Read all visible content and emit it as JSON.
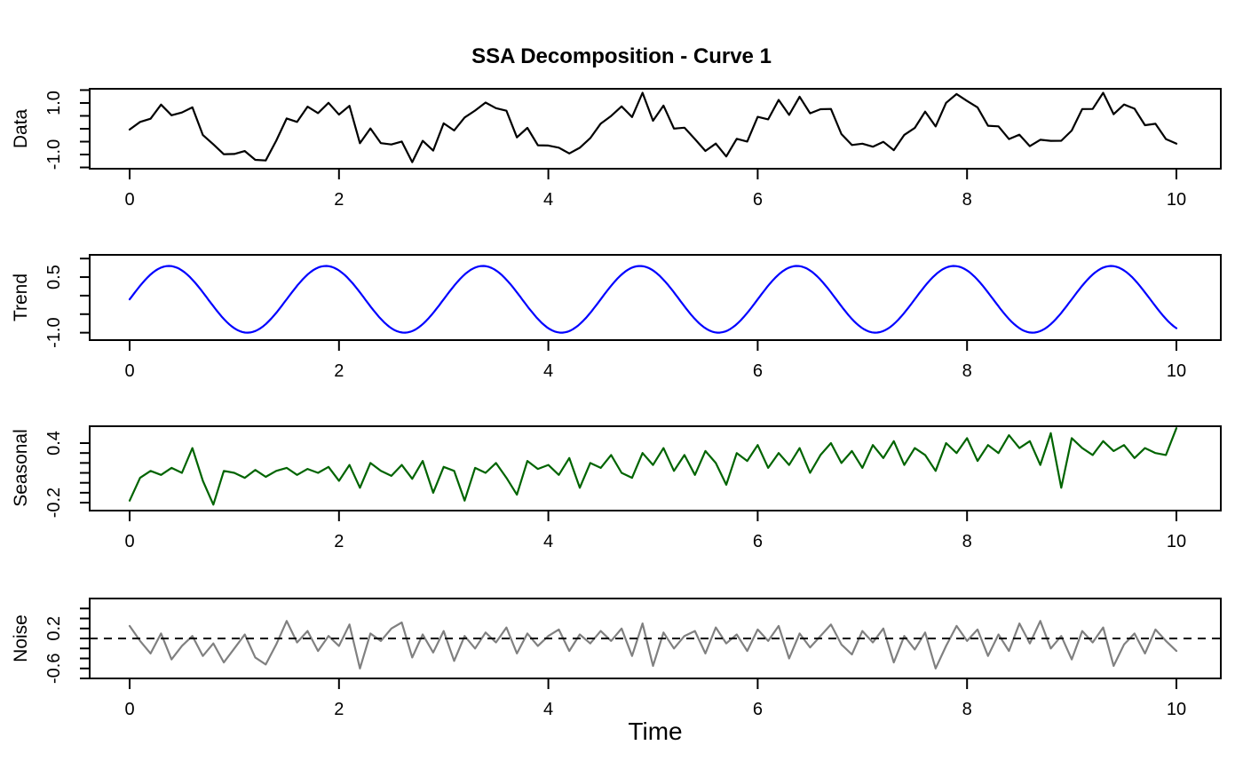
{
  "title": "SSA Decomposition - Curve 1",
  "xlabel": "Time",
  "colors": {
    "data_line": "#000000",
    "trend_line": "#0000ff",
    "seasonal_line": "#006400",
    "noise_line": "#808080",
    "zero_line": "#000000",
    "axis": "#000000",
    "background": "#ffffff"
  },
  "x_axis": {
    "range": [
      0,
      10
    ],
    "ticks": [
      0,
      2,
      4,
      6,
      8,
      10
    ],
    "tick_labels": [
      "0",
      "2",
      "4",
      "6",
      "8",
      "10"
    ]
  },
  "chart_data": [
    {
      "type": "line",
      "name": "data",
      "ylabel": "Data",
      "color": "#000000",
      "ylim": [
        -1.55,
        1.55
      ],
      "y_ticks": [
        -1.5,
        -1.0,
        -0.5,
        0.0,
        0.5,
        1.0,
        1.5
      ],
      "y_tick_labels": [
        {
          "value": 1.0,
          "label": "1.0"
        },
        {
          "value": -1.0,
          "label": "-1.0"
        }
      ],
      "x_range": [
        0,
        10
      ],
      "n_points": 101,
      "derive": "trend+seasonal+noise"
    },
    {
      "type": "line",
      "name": "trend",
      "ylabel": "Trend",
      "color": "#0000ff",
      "ylim": [
        -1.2,
        1.1
      ],
      "y_ticks": [
        -1.0,
        -0.5,
        0.0,
        0.5,
        1.0
      ],
      "y_tick_labels": [
        {
          "value": 0.5,
          "label": "0.5"
        },
        {
          "value": -1.0,
          "label": "-1.0"
        }
      ],
      "x_range": [
        0,
        10
      ],
      "sine": {
        "offset": -0.1,
        "amplitude": 0.9,
        "period": 1.5,
        "phase": 0
      }
    },
    {
      "type": "line",
      "name": "seasonal",
      "ylabel": "Seasonal",
      "color": "#006400",
      "ylim": [
        -0.28,
        0.57
      ],
      "y_ticks": [
        -0.2,
        -0.1,
        0.0,
        0.1,
        0.2,
        0.3,
        0.4
      ],
      "y_tick_labels": [
        {
          "value": 0.4,
          "label": "0.4"
        },
        {
          "value": -0.2,
          "label": "-0.2"
        }
      ],
      "x_range": [
        0,
        10
      ],
      "n_points": 101,
      "values": [
        -0.18,
        0.05,
        0.12,
        0.08,
        0.15,
        0.1,
        0.35,
        0.02,
        -0.22,
        0.12,
        0.1,
        0.05,
        0.13,
        0.06,
        0.12,
        0.15,
        0.08,
        0.14,
        0.1,
        0.16,
        0.02,
        0.18,
        -0.05,
        0.2,
        0.12,
        0.07,
        0.18,
        0.04,
        0.22,
        -0.1,
        0.16,
        0.12,
        -0.18,
        0.15,
        0.1,
        0.2,
        0.05,
        -0.12,
        0.22,
        0.14,
        0.18,
        0.08,
        0.25,
        -0.05,
        0.2,
        0.15,
        0.28,
        0.1,
        0.05,
        0.3,
        0.18,
        0.35,
        0.12,
        0.28,
        0.08,
        0.32,
        0.2,
        -0.02,
        0.3,
        0.22,
        0.38,
        0.15,
        0.3,
        0.18,
        0.35,
        0.1,
        0.28,
        0.4,
        0.2,
        0.32,
        0.15,
        0.38,
        0.25,
        0.42,
        0.18,
        0.35,
        0.28,
        0.12,
        0.4,
        0.3,
        0.45,
        0.22,
        0.38,
        0.3,
        0.48,
        0.35,
        0.42,
        0.18,
        0.5,
        -0.05,
        0.45,
        0.35,
        0.28,
        0.42,
        0.32,
        0.38,
        0.25,
        0.35,
        0.3,
        0.28,
        0.55
      ]
    },
    {
      "type": "line",
      "name": "noise",
      "ylabel": "Noise",
      "color": "#808080",
      "ylim": [
        -0.8,
        0.8
      ],
      "y_ticks": [
        -0.8,
        -0.6,
        -0.4,
        -0.2,
        0.0,
        0.2,
        0.4,
        0.6
      ],
      "y_tick_labels": [
        {
          "value": 0.2,
          "label": "0.2"
        },
        {
          "value": -0.6,
          "label": "-0.6"
        }
      ],
      "x_range": [
        0,
        10
      ],
      "n_points": 101,
      "hline": {
        "y": 0,
        "style": "dashed",
        "color": "#000000"
      },
      "values": [
        0.25,
        -0.05,
        -0.3,
        0.1,
        -0.42,
        -0.15,
        0.05,
        -0.35,
        -0.1,
        -0.48,
        -0.2,
        0.08,
        -0.38,
        -0.52,
        -0.12,
        0.35,
        -0.08,
        0.15,
        -0.25,
        0.05,
        -0.15,
        0.28,
        -0.6,
        0.1,
        -0.05,
        0.2,
        0.32,
        -0.38,
        0.08,
        -0.28,
        0.15,
        -0.45,
        0.05,
        -0.2,
        0.12,
        -0.08,
        0.22,
        -0.3,
        0.1,
        -0.15,
        0.05,
        0.18,
        -0.25,
        0.08,
        -0.1,
        0.15,
        -0.05,
        0.2,
        -0.35,
        0.3,
        -0.55,
        0.12,
        -0.2,
        0.05,
        0.15,
        -0.3,
        0.22,
        -0.1,
        0.08,
        -0.25,
        0.18,
        -0.05,
        0.25,
        -0.4,
        0.1,
        -0.18,
        0.05,
        0.28,
        -0.12,
        -0.32,
        0.15,
        -0.08,
        0.2,
        -0.48,
        0.05,
        -0.22,
        0.12,
        -0.6,
        -0.15,
        0.25,
        -0.05,
        0.18,
        -0.35,
        0.08,
        -0.25,
        0.3,
        -0.1,
        0.35,
        -0.2,
        0.05,
        -0.42,
        0.15,
        -0.08,
        0.22,
        -0.55,
        -0.12,
        0.1,
        -0.3,
        0.18,
        -0.05,
        -0.25
      ]
    }
  ]
}
